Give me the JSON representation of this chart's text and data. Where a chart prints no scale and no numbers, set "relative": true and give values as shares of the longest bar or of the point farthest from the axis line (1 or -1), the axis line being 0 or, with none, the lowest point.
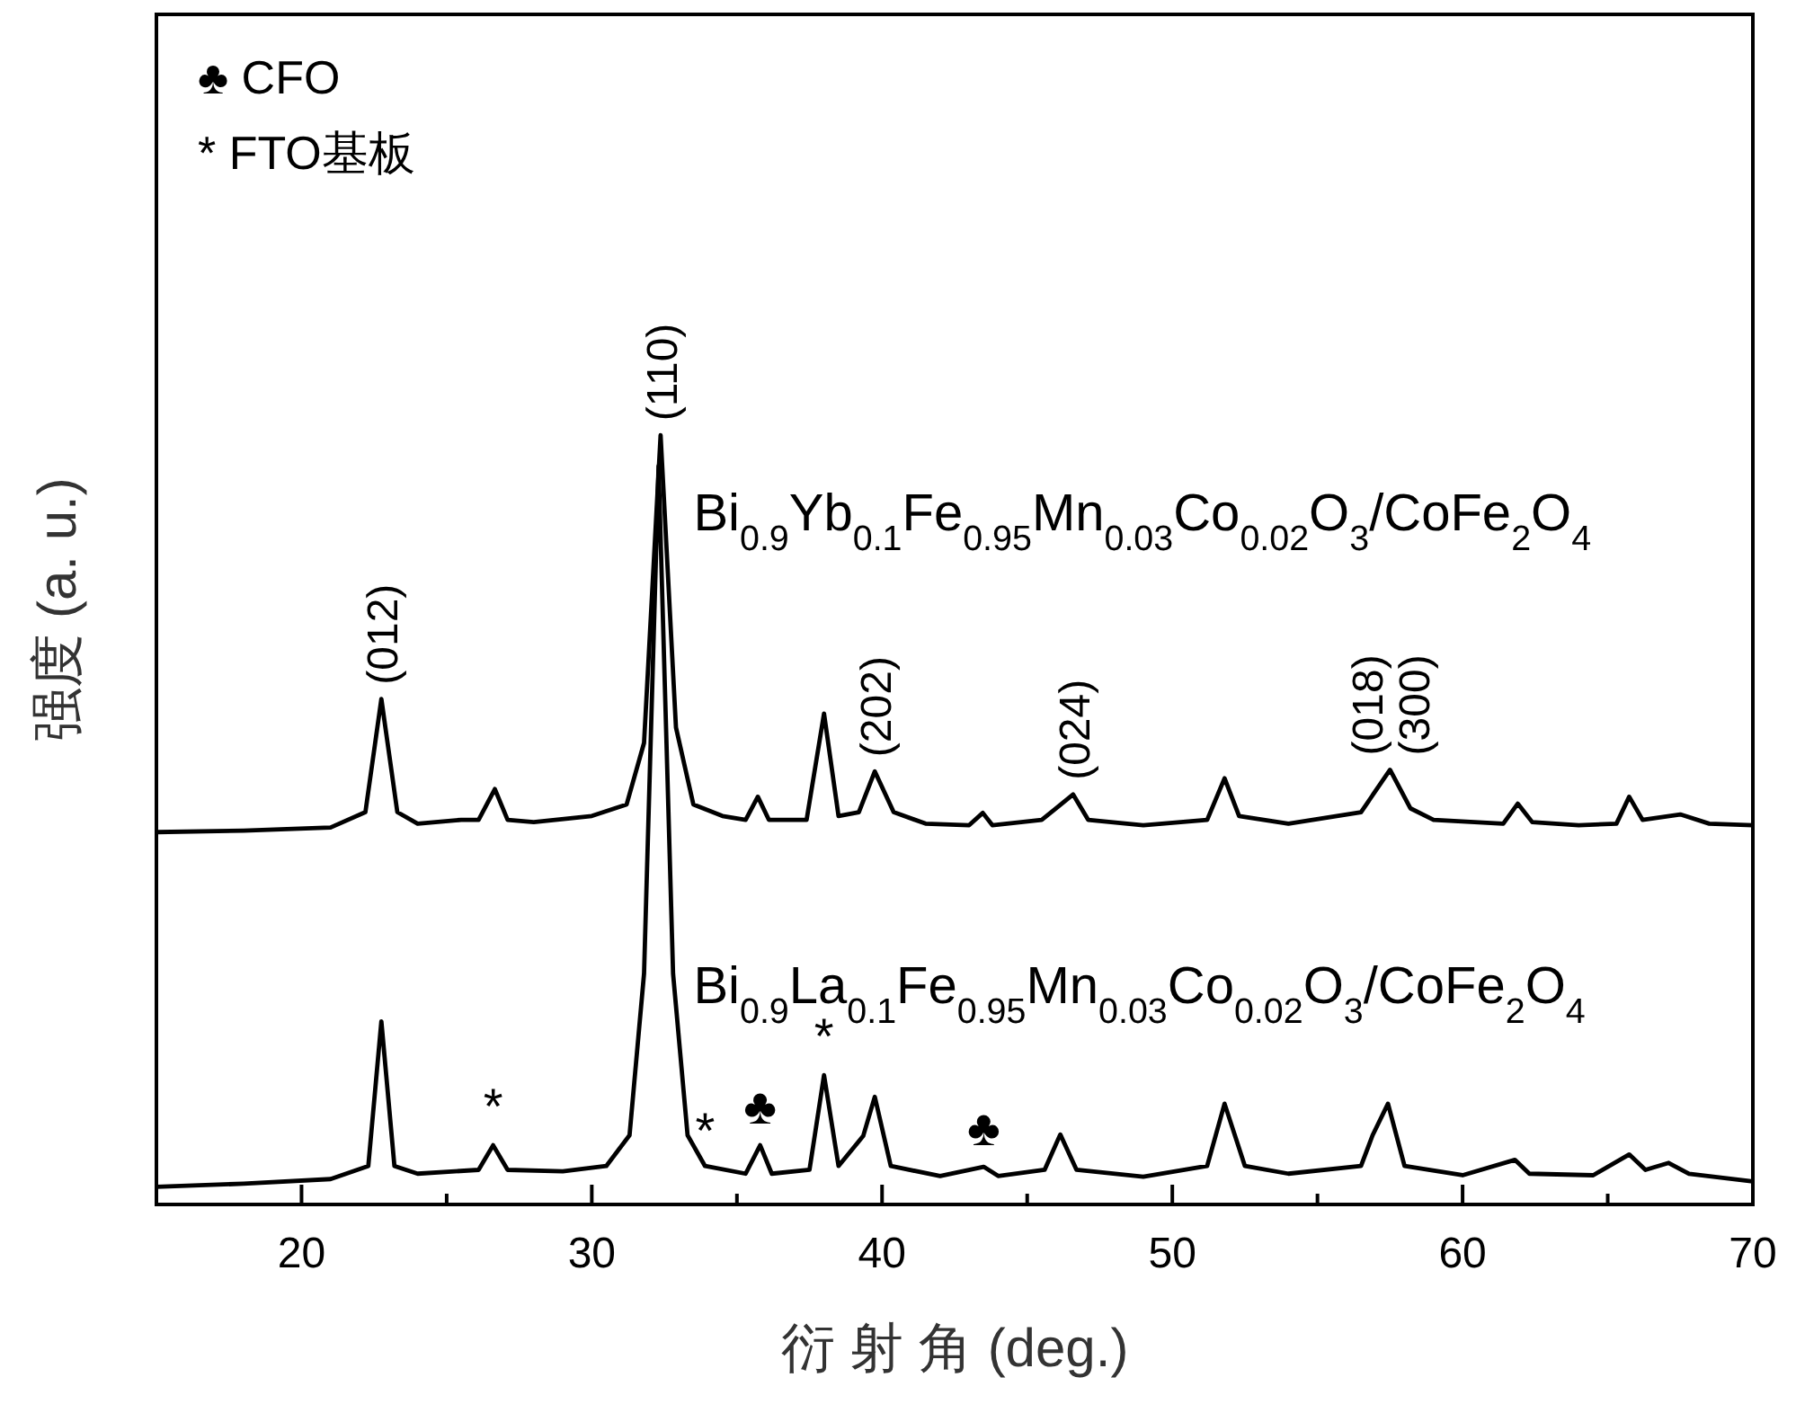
{
  "chart_data": {
    "type": "line",
    "relative": true,
    "xlabel": "衍 射 角 (deg.)",
    "ylabel": "强度 (a. u.)",
    "xlim": [
      15,
      70
    ],
    "xticks": [
      20,
      {
        "value": 25,
        "label": null
      },
      30,
      {
        "value": 35,
        "label": null
      },
      40,
      {
        "value": 45,
        "label": null
      },
      50,
      {
        "value": 55,
        "label": null
      },
      60,
      {
        "value": 65,
        "label": null
      },
      70
    ],
    "grid": false,
    "marker": "none",
    "line_style": "solid",
    "series": [
      {
        "name": "Bi$_{0.9}$Yb$_{0.1}$Fe$_{0.95}$Mn$_{0.03}$Co$_{0.02}$O$_{3}$/CoFe$_{2}$O$_{4}$",
        "color": "#000000",
        "x": [
          15,
          18,
          21,
          22.2,
          22.75,
          23.3,
          24,
          25.5,
          26.1,
          26.66,
          27.1,
          28,
          30,
          31.2,
          31.8,
          32.37,
          32.9,
          33.5,
          34.5,
          35.3,
          35.72,
          36.1,
          37.4,
          38.0,
          38.5,
          39.2,
          39.75,
          40.4,
          41.5,
          43.0,
          43.47,
          43.8,
          45.5,
          46.0,
          46.58,
          47.1,
          49,
          51.2,
          51.8,
          52.3,
          54,
          56.5,
          57.5,
          58.2,
          59,
          61.4,
          61.9,
          62.4,
          64,
          65.3,
          65.74,
          66.2,
          67.5,
          68.5,
          70
        ],
        "values": [
          0.484,
          0.486,
          0.49,
          0.51,
          0.657,
          0.51,
          0.495,
          0.5,
          0.5,
          0.54,
          0.5,
          0.497,
          0.505,
          0.52,
          0.6,
          1.0,
          0.62,
          0.52,
          0.505,
          0.5,
          0.53,
          0.5,
          0.5,
          0.638,
          0.505,
          0.51,
          0.563,
          0.51,
          0.495,
          0.493,
          0.509,
          0.493,
          0.5,
          0.515,
          0.533,
          0.5,
          0.493,
          0.5,
          0.554,
          0.505,
          0.495,
          0.51,
          0.565,
          0.515,
          0.5,
          0.495,
          0.521,
          0.497,
          0.493,
          0.495,
          0.53,
          0.5,
          0.507,
          0.495,
          0.493
        ]
      },
      {
        "name": "Bi$_{0.9}$La$_{0.1}$Fe$_{0.95}$Mn$_{0.03}$Co$_{0.02}$O$_{3}$/CoFe$_{2}$O$_{4}$",
        "color": "#000000",
        "x": [
          15,
          18,
          21,
          22.3,
          22.75,
          23.2,
          24,
          26.1,
          26.6,
          27.1,
          29,
          30.5,
          31.3,
          31.8,
          32.3,
          32.8,
          33.3,
          33.9,
          35.3,
          35.8,
          36.2,
          37.5,
          38.0,
          38.5,
          39.35,
          39.75,
          40.3,
          42,
          43.5,
          44,
          45.6,
          46.14,
          46.7,
          49,
          51.2,
          51.8,
          52.5,
          54,
          56.5,
          56.9,
          57.43,
          58,
          60,
          61.8,
          62.3,
          64.5,
          65.74,
          66.3,
          67.1,
          67.8,
          70
        ],
        "values": [
          0.023,
          0.027,
          0.033,
          0.05,
          0.238,
          0.05,
          0.04,
          0.045,
          0.077,
          0.045,
          0.043,
          0.05,
          0.09,
          0.3,
          0.96,
          0.3,
          0.09,
          0.05,
          0.04,
          0.077,
          0.04,
          0.045,
          0.168,
          0.05,
          0.089,
          0.14,
          0.05,
          0.037,
          0.049,
          0.037,
          0.045,
          0.091,
          0.045,
          0.036,
          0.05,
          0.131,
          0.05,
          0.04,
          0.05,
          0.09,
          0.131,
          0.05,
          0.038,
          0.058,
          0.04,
          0.038,
          0.065,
          0.045,
          0.054,
          0.04,
          0.03
        ]
      }
    ],
    "annotations": [
      "♣ CFO",
      "* FTO基板",
      {
        "text": "(012)",
        "x": 22.75,
        "y": 0.657
      },
      {
        "text": "(110)",
        "x": 32.37,
        "y": 1.0
      },
      {
        "text": "(202)",
        "x": 39.75,
        "y": 0.563
      },
      {
        "text": "(024)",
        "x": 46.58,
        "y": 0.533
      },
      {
        "text": "(018)",
        "x": 57.5,
        "y": 0.565
      },
      {
        "text": "(300)",
        "x": 57.5,
        "y": 0.565
      },
      {
        "text": "*",
        "x": 26.6,
        "y": 0.077
      },
      {
        "text": "*",
        "x": 33.9,
        "y": 0.045
      },
      {
        "text": "♣",
        "x": 35.8,
        "y": 0.077
      },
      {
        "text": "*",
        "x": 38.0,
        "y": 0.168
      },
      {
        "text": "♣",
        "x": 43.5,
        "y": 0.049
      }
    ]
  }
}
